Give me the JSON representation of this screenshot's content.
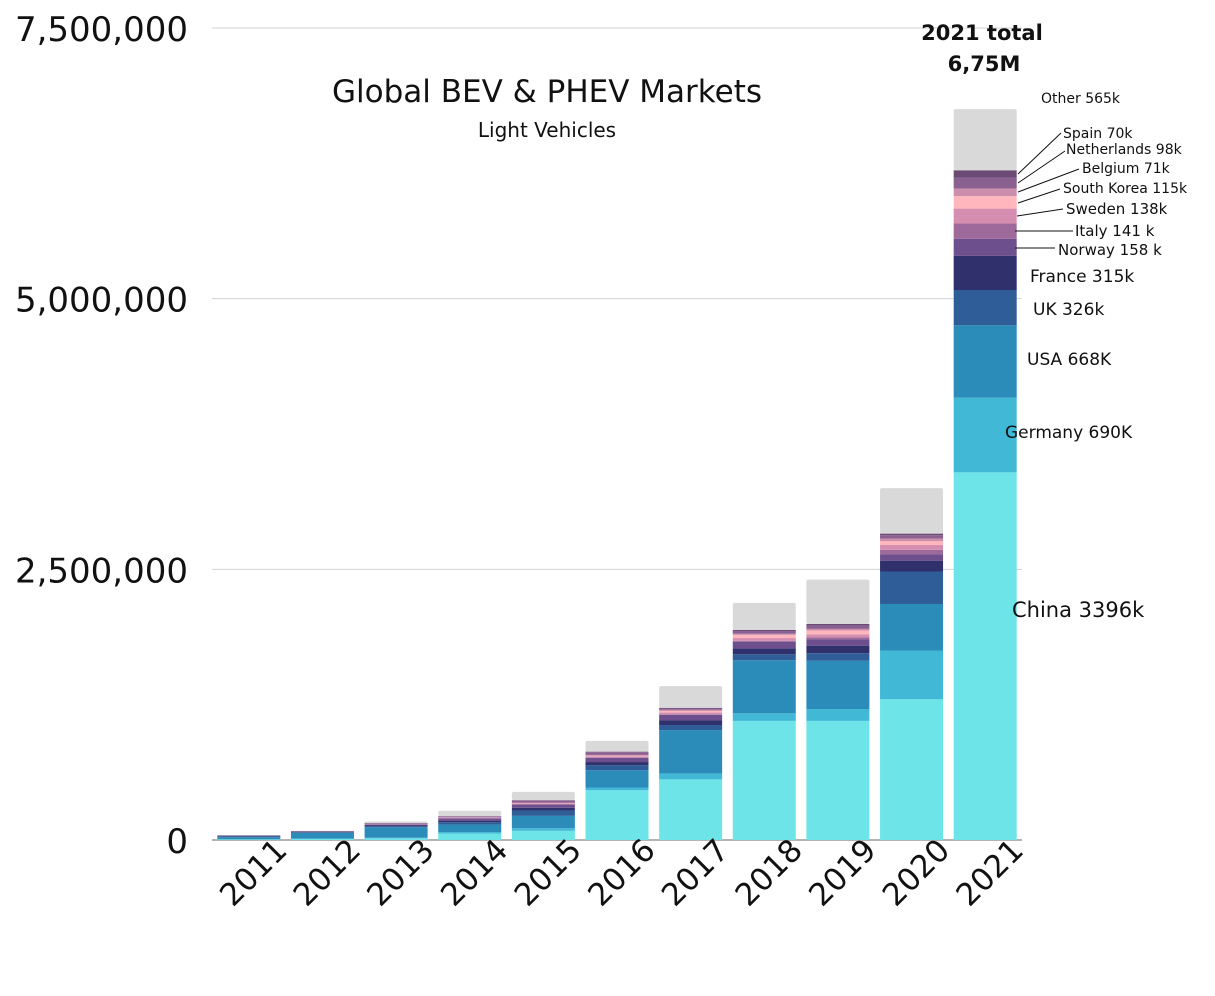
{
  "chart_data": {
    "type": "bar",
    "stacked": true,
    "title": "Global BEV & PHEV Markets",
    "subtitle": "Light Vehicles",
    "xlabel": "",
    "ylabel": "",
    "ylim": [
      0,
      7500000
    ],
    "yticks": [
      {
        "value": 0,
        "label": "0"
      },
      {
        "value": 2500000,
        "label": "2,500,000"
      },
      {
        "value": 5000000,
        "label": "5,000,000"
      },
      {
        "value": 7500000,
        "label": "7,500,000"
      }
    ],
    "grid": true,
    "legend": "none",
    "categories": [
      "2011",
      "2012",
      "2013",
      "2014",
      "2015",
      "2016",
      "2017",
      "2018",
      "2019",
      "2020",
      "2021"
    ],
    "series": [
      {
        "name": "China",
        "color": "#6CE4E8",
        "values": [
          5000,
          10000,
          15000,
          60000,
          85000,
          460000,
          560000,
          1100000,
          1100000,
          1300000,
          3396000
        ]
      },
      {
        "name": "Germany",
        "color": "#41B8D6",
        "values": [
          2000,
          3000,
          6000,
          12000,
          24000,
          25000,
          55000,
          70000,
          110000,
          450000,
          690000
        ]
      },
      {
        "name": "USA",
        "color": "#2B8CBA",
        "values": [
          18000,
          53000,
          97000,
          70000,
          114000,
          160000,
          400000,
          490000,
          445000,
          430000,
          668000
        ]
      },
      {
        "name": "UK",
        "color": "#2E5D98",
        "values": [
          10000,
          5000,
          8000,
          22000,
          50000,
          45000,
          47000,
          55000,
          70000,
          300000,
          326000
        ]
      },
      {
        "name": "France",
        "color": "#2F306C",
        "values": [
          5000,
          6000,
          8000,
          15000,
          25000,
          30000,
          45000,
          55000,
          70000,
          100000,
          315000
        ]
      },
      {
        "name": "Norway",
        "color": "#6E4F8E",
        "values": [
          3000,
          4000,
          8000,
          20000,
          30000,
          40000,
          50000,
          60000,
          60000,
          60000,
          158000
        ]
      },
      {
        "name": "Italy",
        "color": "#9E6A9C",
        "values": [
          0,
          0,
          1000,
          2000,
          2000,
          3000,
          5000,
          10000,
          15000,
          40000,
          141000
        ]
      },
      {
        "name": "Sweden",
        "color": "#D58EB0",
        "values": [
          0,
          0,
          1000,
          5000,
          8000,
          10000,
          15000,
          25000,
          30000,
          45000,
          138000
        ]
      },
      {
        "name": "South Korea",
        "color": "#FFB6BD",
        "values": [
          0,
          0,
          0,
          1000,
          3000,
          5000,
          15000,
          30000,
          35000,
          35000,
          115000
        ]
      },
      {
        "name": "Belgium",
        "color": "#CB8EAC",
        "values": [
          0,
          0,
          1000,
          2000,
          5000,
          8000,
          10000,
          10000,
          15000,
          25000,
          71000
        ]
      },
      {
        "name": "Netherlands",
        "color": "#8A6090",
        "values": [
          0,
          2000,
          10000,
          10000,
          20000,
          25000,
          12000,
          25000,
          30000,
          30000,
          98000
        ]
      },
      {
        "name": "Spain",
        "color": "#6B4A76",
        "values": [
          0,
          0,
          1000,
          1000,
          2000,
          5000,
          7000,
          10000,
          15000,
          15000,
          70000
        ]
      },
      {
        "name": "Other",
        "color": "#D9D9D9",
        "values": [
          0,
          2000,
          15000,
          50000,
          77000,
          100000,
          200000,
          250000,
          410000,
          420000,
          565000
        ]
      }
    ],
    "segment_labels_2021": [
      {
        "series": "China",
        "text": "China 3396k"
      },
      {
        "series": "Germany",
        "text": "Germany 690K"
      },
      {
        "series": "USA",
        "text": "USA 668K"
      },
      {
        "series": "UK",
        "text": "UK 326k"
      },
      {
        "series": "France",
        "text": "France 315k"
      },
      {
        "series": "Norway",
        "text": "Norway 158 k"
      },
      {
        "series": "Italy",
        "text": "Italy 141  k"
      },
      {
        "series": "Sweden",
        "text": "Sweden 138k"
      },
      {
        "series": "South Korea",
        "text": "South Korea 115k"
      },
      {
        "series": "Belgium",
        "text": "Belgium 71k"
      },
      {
        "series": "Netherlands",
        "text": "Netherlands 98k"
      },
      {
        "series": "Spain",
        "text": "Spain 70k"
      },
      {
        "series": "Other",
        "text": "Other 565k"
      }
    ],
    "total_annotation": {
      "line1": "2021 total",
      "line2": "6,75M"
    }
  }
}
